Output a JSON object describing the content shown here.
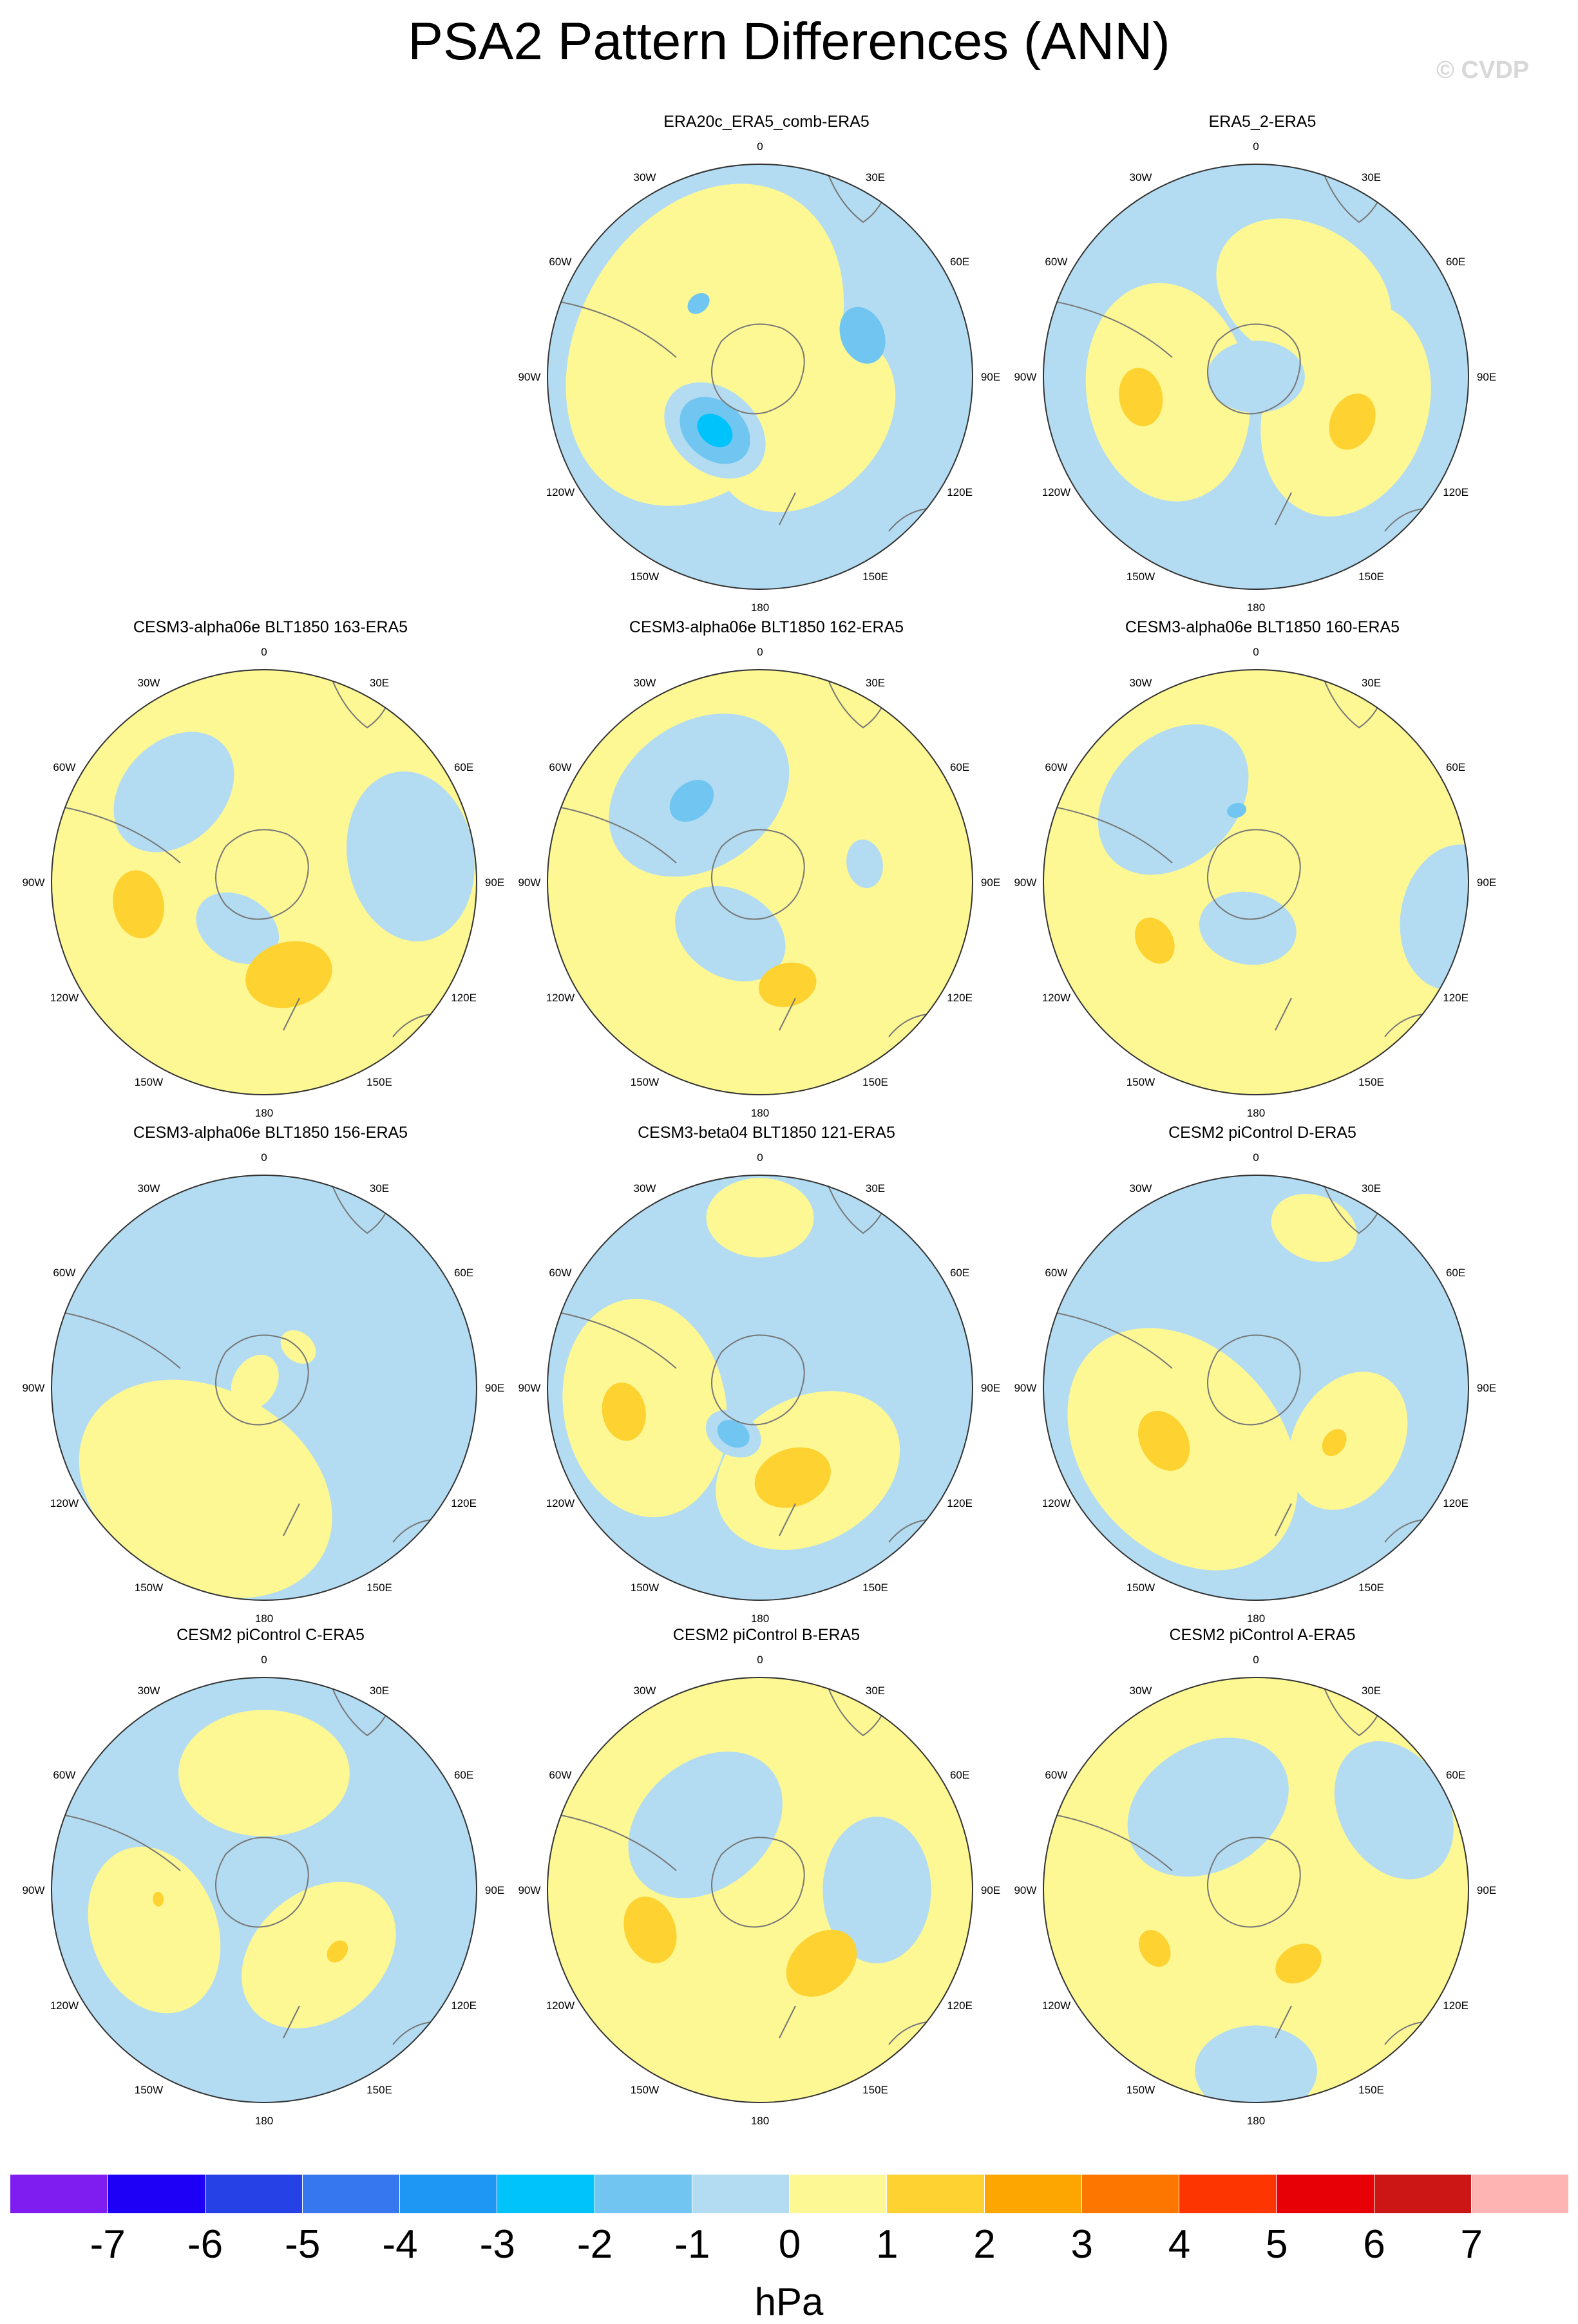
{
  "title": "PSA2 Pattern Differences (ANN)",
  "watermark": "© CVDP",
  "lon_labels": {
    "top": "0",
    "tr": "30E",
    "rt": "60E",
    "right": "90E",
    "rb": "120E",
    "br": "150E",
    "bottom": "180",
    "bl": "150W",
    "lb": "120W",
    "left": "90W",
    "lt": "60W",
    "tl": "30W"
  },
  "panels": [
    {
      "title": "ERA20c_ERA5_comb-ERA5",
      "background": "light-blue",
      "features": [
        {
          "lon": 135,
          "r": 0.3,
          "size": 0.42,
          "level": "pale-yellow"
        },
        {
          "lon": -60,
          "r": 0.3,
          "size": 0.7,
          "level": "pale-yellow"
        },
        {
          "lon": -140,
          "r": 0.33,
          "size": 0.23,
          "level": "light-blue"
        },
        {
          "lon": -140,
          "r": 0.33,
          "size": 0.16,
          "level": "sky-blue"
        },
        {
          "lon": -140,
          "r": 0.33,
          "size": 0.08,
          "level": "cyan"
        },
        {
          "lon": 68,
          "r": 0.52,
          "size": 0.12,
          "level": "sky-blue"
        },
        {
          "lon": -40,
          "r": 0.45,
          "size": 0.05,
          "level": "sky-blue"
        }
      ]
    },
    {
      "title": "ERA5_2-ERA5",
      "background": "light-blue",
      "features": [
        {
          "lon": 30,
          "r": 0.45,
          "size": 0.38,
          "level": "pale-yellow"
        },
        {
          "lon": -100,
          "r": 0.42,
          "size": 0.45,
          "level": "pale-yellow"
        },
        {
          "lon": 110,
          "r": 0.45,
          "size": 0.45,
          "level": "pale-yellow"
        },
        {
          "lon": -100,
          "r": 0.55,
          "size": 0.12,
          "level": "gold"
        },
        {
          "lon": 115,
          "r": 0.5,
          "size": 0.12,
          "level": "gold"
        },
        {
          "lon": 0,
          "r": 0.0,
          "size": 0.2,
          "level": "light-blue"
        }
      ]
    },
    {
      "title": "CESM3-alpha06e BLT1850 163-ERA5",
      "background": "pale-yellow",
      "features": [
        {
          "lon": -45,
          "r": 0.6,
          "size": 0.28,
          "level": "light-blue"
        },
        {
          "lon": -150,
          "r": 0.25,
          "size": 0.18,
          "level": "light-blue"
        },
        {
          "lon": 80,
          "r": 0.7,
          "size": 0.35,
          "level": "light-blue"
        },
        {
          "lon": -100,
          "r": 0.6,
          "size": 0.14,
          "level": "gold"
        },
        {
          "lon": 165,
          "r": 0.45,
          "size": 0.18,
          "level": "gold"
        }
      ]
    },
    {
      "title": "CESM3-alpha06e BLT1850 162-ERA5",
      "background": "pale-yellow",
      "features": [
        {
          "lon": -35,
          "r": 0.5,
          "size": 0.4,
          "level": "light-blue"
        },
        {
          "lon": -150,
          "r": 0.28,
          "size": 0.24,
          "level": "light-blue"
        },
        {
          "lon": 80,
          "r": 0.5,
          "size": 0.1,
          "level": "light-blue"
        },
        {
          "lon": -40,
          "r": 0.5,
          "size": 0.1,
          "level": "sky-blue"
        },
        {
          "lon": 165,
          "r": 0.5,
          "size": 0.12,
          "level": "gold"
        }
      ]
    },
    {
      "title": "CESM3-alpha06e BLT1850 160-ERA5",
      "background": "pale-yellow",
      "features": [
        {
          "lon": -45,
          "r": 0.55,
          "size": 0.35,
          "level": "light-blue"
        },
        {
          "lon": -170,
          "r": 0.22,
          "size": 0.2,
          "level": "light-blue"
        },
        {
          "lon": 100,
          "r": 0.95,
          "size": 0.3,
          "level": "light-blue"
        },
        {
          "lon": -120,
          "r": 0.55,
          "size": 0.1,
          "level": "gold"
        },
        {
          "lon": -15,
          "r": 0.35,
          "size": 0.04,
          "level": "sky-blue"
        }
      ]
    },
    {
      "title": "CESM3-alpha06e BLT1850 156-ERA5",
      "background": "light-blue",
      "features": [
        {
          "lon": -150,
          "r": 0.55,
          "size": 0.55,
          "level": "pale-yellow"
        },
        {
          "lon": 40,
          "r": 0.25,
          "size": 0.08,
          "level": "pale-yellow"
        },
        {
          "lon": -60,
          "r": 0.05,
          "size": 0.12,
          "level": "pale-yellow"
        }
      ]
    },
    {
      "title": "CESM3-beta04 BLT1850 121-ERA5",
      "background": "light-blue",
      "features": [
        {
          "lon": -100,
          "r": 0.55,
          "size": 0.45,
          "level": "pale-yellow"
        },
        {
          "lon": 150,
          "r": 0.45,
          "size": 0.4,
          "level": "pale-yellow"
        },
        {
          "lon": 0,
          "r": 0.8,
          "size": 0.22,
          "level": "pale-yellow"
        },
        {
          "lon": -150,
          "r": 0.25,
          "size": 0.12,
          "level": "light-blue"
        },
        {
          "lon": -150,
          "r": 0.25,
          "size": 0.07,
          "level": "sky-blue"
        },
        {
          "lon": -100,
          "r": 0.65,
          "size": 0.12,
          "level": "gold"
        },
        {
          "lon": 160,
          "r": 0.45,
          "size": 0.16,
          "level": "gold"
        }
      ]
    },
    {
      "title": "CESM2 piControl D-ERA5",
      "background": "light-blue",
      "features": [
        {
          "lon": -130,
          "r": 0.45,
          "size": 0.55,
          "level": "pale-yellow"
        },
        {
          "lon": 120,
          "r": 0.5,
          "size": 0.3,
          "level": "pale-yellow"
        },
        {
          "lon": 20,
          "r": 0.8,
          "size": 0.18,
          "level": "pale-yellow"
        },
        {
          "lon": -120,
          "r": 0.5,
          "size": 0.13,
          "level": "gold"
        },
        {
          "lon": 125,
          "r": 0.45,
          "size": 0.06,
          "level": "gold"
        }
      ]
    },
    {
      "title": "CESM2 piControl C-ERA5",
      "background": "light-blue",
      "features": [
        {
          "lon": 0,
          "r": 0.55,
          "size": 0.35,
          "level": "pale-yellow"
        },
        {
          "lon": -110,
          "r": 0.55,
          "size": 0.35,
          "level": "pale-yellow"
        },
        {
          "lon": 140,
          "r": 0.4,
          "size": 0.35,
          "level": "pale-yellow"
        },
        {
          "lon": 130,
          "r": 0.45,
          "size": 0.05,
          "level": "gold"
        },
        {
          "lon": -95,
          "r": 0.5,
          "size": 0.03,
          "level": "gold"
        }
      ]
    },
    {
      "title": "CESM2 piControl B-ERA5",
      "background": "pale-yellow",
      "features": [
        {
          "lon": -40,
          "r": 0.4,
          "size": 0.35,
          "level": "light-blue"
        },
        {
          "lon": 90,
          "r": 0.55,
          "size": 0.3,
          "level": "light-blue"
        },
        {
          "lon": -110,
          "r": 0.55,
          "size": 0.14,
          "level": "gold"
        },
        {
          "lon": 140,
          "r": 0.45,
          "size": 0.16,
          "level": "gold"
        }
      ]
    },
    {
      "title": "CESM2 piControl A-ERA5",
      "background": "pale-yellow",
      "features": [
        {
          "lon": -30,
          "r": 0.45,
          "size": 0.35,
          "level": "light-blue"
        },
        {
          "lon": 60,
          "r": 0.75,
          "size": 0.3,
          "level": "light-blue"
        },
        {
          "lon": 180,
          "r": 0.85,
          "size": 0.25,
          "level": "light-blue"
        },
        {
          "lon": -120,
          "r": 0.55,
          "size": 0.08,
          "level": "gold"
        },
        {
          "lon": 150,
          "r": 0.4,
          "size": 0.1,
          "level": "gold"
        }
      ]
    }
  ],
  "colorbar": {
    "colors": [
      "#7f1cf0",
      "#1d00f5",
      "#2642e6",
      "#3676ee",
      "#1e96f3",
      "#00c3fb",
      "#70c6f1",
      "#b3dcf2",
      "#fdf894",
      "#fdd231",
      "#fda500",
      "#fd7700",
      "#fd3500",
      "#e80007",
      "#cc1616",
      "#ffb4b4"
    ],
    "tick_labels": [
      "-7",
      "-6",
      "-5",
      "-4",
      "-3",
      "-2",
      "-1",
      "0",
      "1",
      "2",
      "3",
      "4",
      "5",
      "6",
      "7"
    ],
    "units": "hPa"
  },
  "palette": {
    "light-blue": "#b3dcf2",
    "sky-blue": "#70c6f1",
    "cyan": "#00c3fb",
    "pale-yellow": "#fdf894",
    "gold": "#fdd231"
  }
}
